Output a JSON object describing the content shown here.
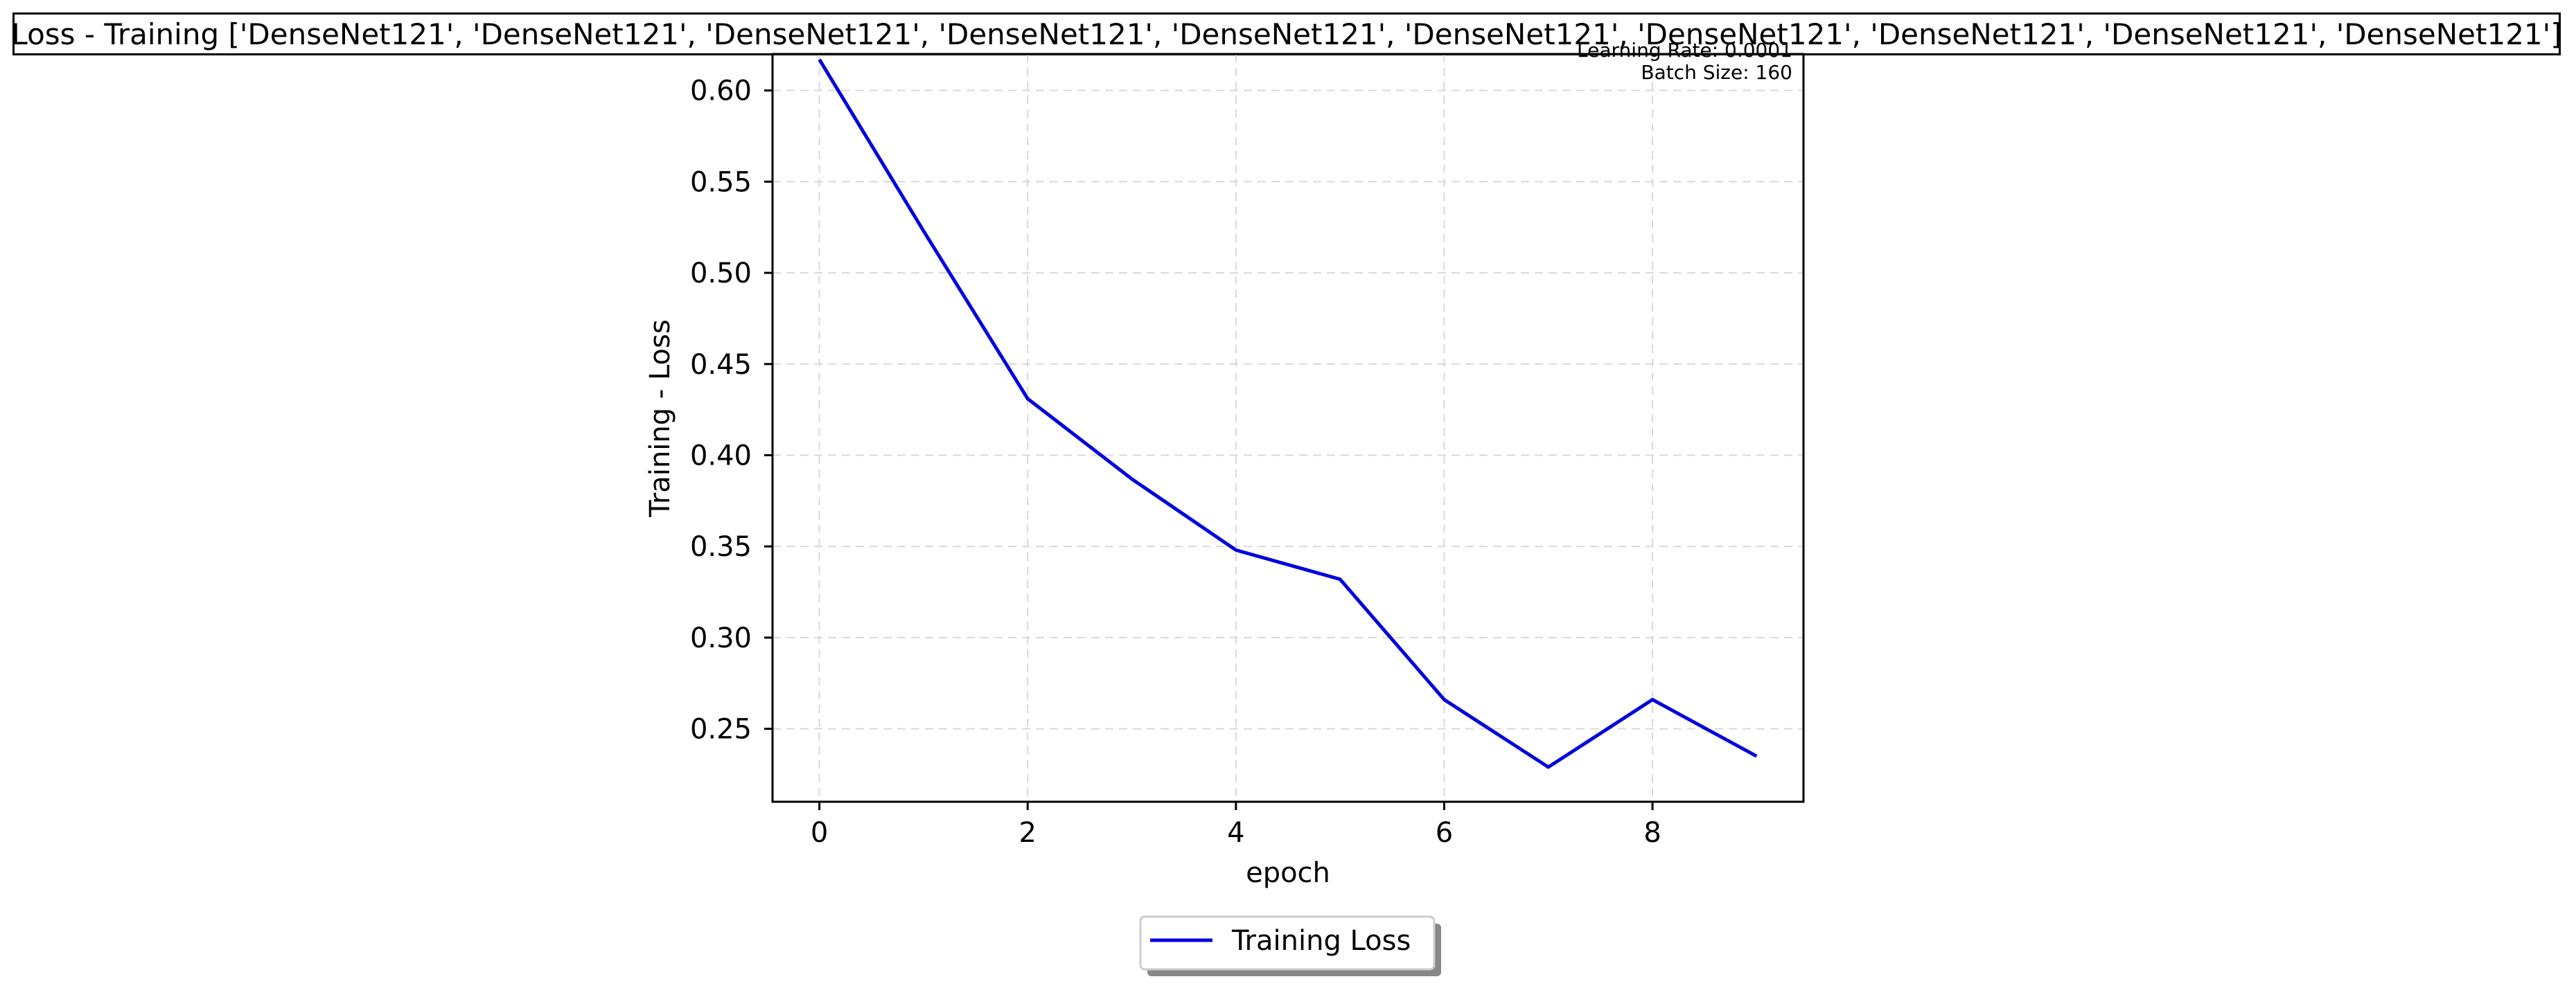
{
  "chart_data": {
    "type": "line",
    "title": "Loss - Training ['DenseNet121', 'DenseNet121', 'DenseNet121', 'DenseNet121', 'DenseNet121', 'DenseNet121', 'DenseNet121', 'DenseNet121', 'DenseNet121', 'DenseNet121']",
    "xlabel": "epoch",
    "ylabel": "Training - Loss",
    "annotations": [
      "Learning Rate: 0.0001",
      "Batch Size: 160"
    ],
    "x": [
      0,
      1,
      2,
      3,
      4,
      5,
      6,
      7,
      8,
      9
    ],
    "series": [
      {
        "name": "Training Loss",
        "color": "#0000dd",
        "values": [
          0.617,
          0.523,
          0.431,
          0.387,
          0.348,
          0.332,
          0.266,
          0.229,
          0.266,
          0.235
        ]
      }
    ],
    "xticks": [
      "0",
      "2",
      "4",
      "6",
      "8"
    ],
    "yticks": [
      "0.25",
      "0.30",
      "0.35",
      "0.40",
      "0.45",
      "0.50",
      "0.55",
      "0.60"
    ],
    "xlim": [
      -0.45,
      9.45
    ],
    "ylim": [
      0.21,
      0.62
    ],
    "grid": true,
    "legend_position": "bottom-center"
  }
}
